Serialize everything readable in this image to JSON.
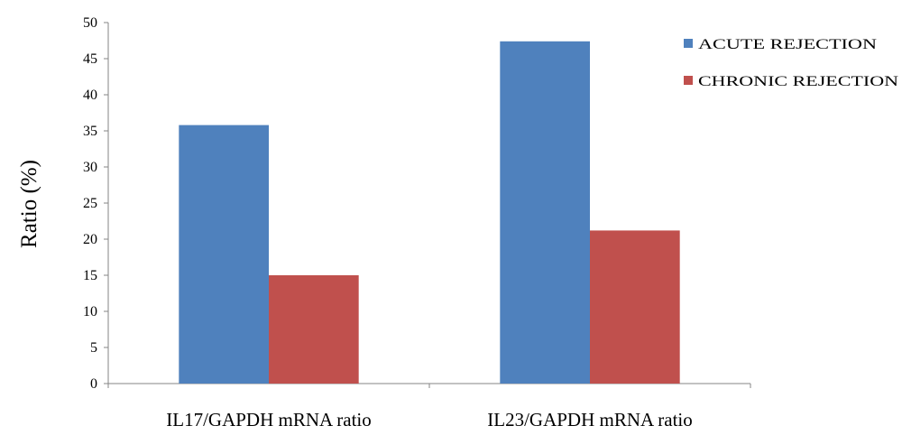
{
  "chart_data": {
    "type": "bar",
    "title": "",
    "xlabel": "",
    "ylabel": "Ratio (%)",
    "ylim": [
      0,
      50
    ],
    "ytick_step": 5,
    "yticks": [
      "0",
      "5",
      "10",
      "15",
      "20",
      "25",
      "30",
      "35",
      "40",
      "45",
      "50"
    ],
    "categories": [
      "IL17/GAPDH mRNA ratio",
      "IL23/GAPDH mRNA ratio"
    ],
    "series": [
      {
        "name": "ACUTE REJECTION",
        "color": "#4F81BD",
        "values": [
          35.8,
          47.4
        ]
      },
      {
        "name": "CHRONIC REJECTION",
        "color": "#C0504D",
        "values": [
          15.0,
          21.2
        ]
      }
    ],
    "grid": false,
    "legend_position": "top-right"
  }
}
